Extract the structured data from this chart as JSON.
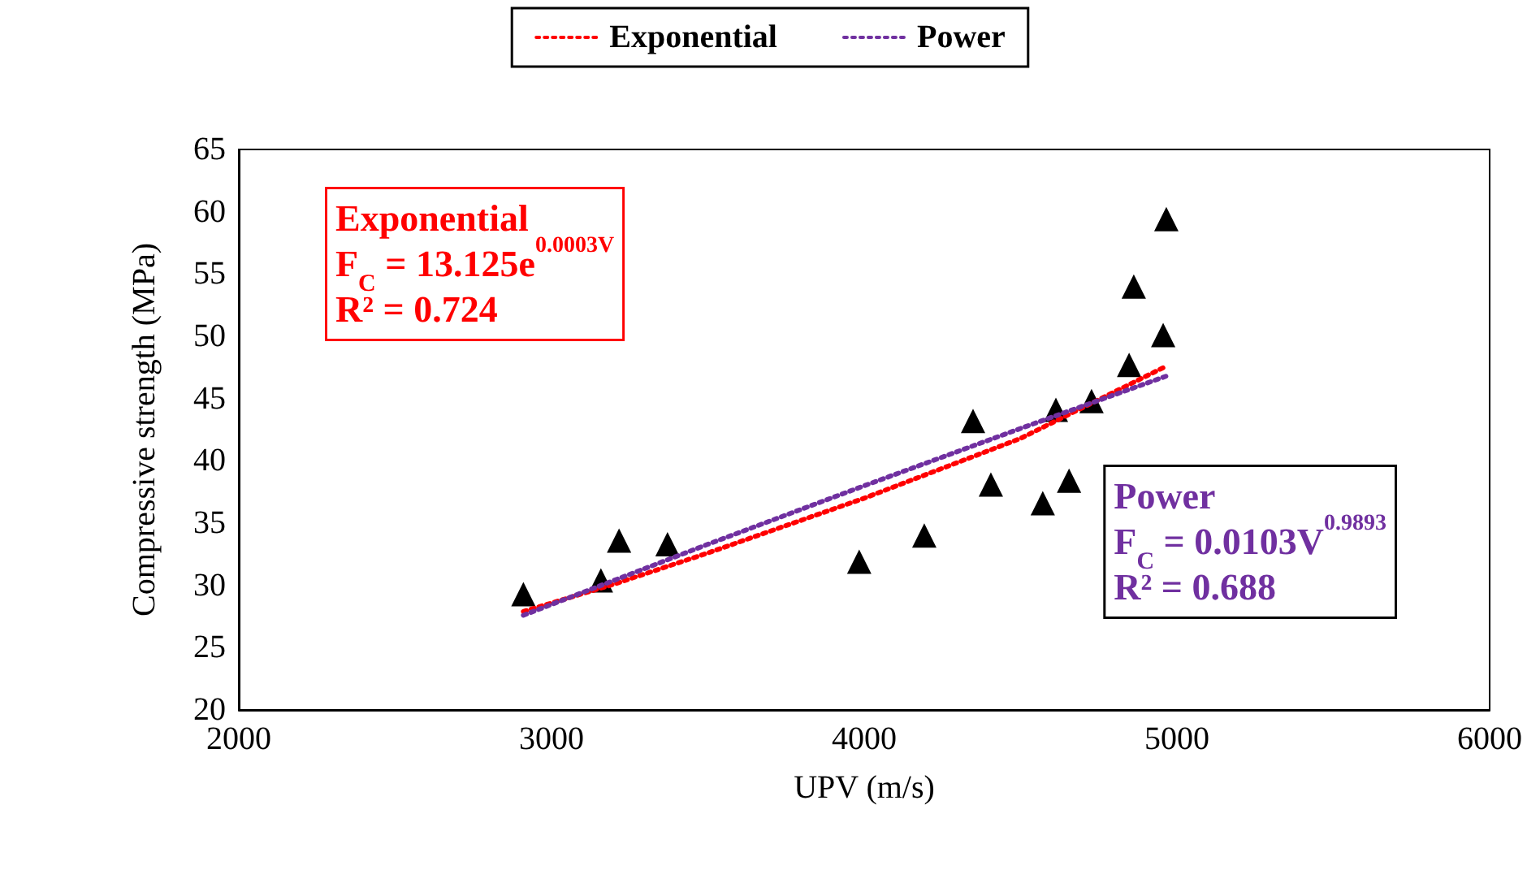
{
  "chart_data": {
    "type": "scatter",
    "xlabel": "UPV (m/s)",
    "ylabel": "Compressive strength (MPa)",
    "series": [
      {
        "color": "#000000",
        "marker": "triangle",
        "x": [
          2910,
          3158,
          3216,
          3371,
          3984,
          4192,
          4348,
          4405,
          4571,
          4613,
          4655,
          4727,
          4847,
          4862,
          4956,
          4966
        ],
        "values": [
          29.3,
          30.4,
          33.6,
          33.3,
          31.9,
          34.0,
          43.2,
          38.1,
          36.6,
          44.1,
          38.4,
          44.8,
          47.7,
          54.0,
          50.1,
          59.4
        ]
      },
      {
        "type": "line",
        "name": "Exponential",
        "color": "#ff0000",
        "marker": "none",
        "line_style": "dotted",
        "x": [
          2910,
          3200,
          3500,
          4000,
          4500,
          4966
        ],
        "values": [
          27.9,
          30.1,
          32.6,
          37.0,
          41.8,
          47.6
        ]
      },
      {
        "type": "line",
        "name": "Power",
        "color": "#7030a0",
        "marker": "none",
        "line_style": "dotted",
        "x": [
          2910,
          3200,
          3500,
          4000,
          4500,
          4966
        ],
        "values": [
          27.6,
          30.4,
          33.3,
          38.0,
          42.6,
          46.8
        ]
      }
    ],
    "annotations": [
      "Exponential\nF$_{C}$ = 13.125e$^{0.0003V}$\nR² = 0.724",
      "Power\nF$_{C}$ = 0.0103V$^{0.9893}$\nR² = 0.688"
    ],
    "xlim": [
      2000,
      6000
    ],
    "xticks": [
      2000,
      3000,
      4000,
      5000,
      6000
    ],
    "ylim": [
      20,
      65
    ],
    "yticks": [
      20,
      25,
      30,
      35,
      40,
      45,
      50,
      55,
      60,
      65
    ],
    "grid": false,
    "legend": "top"
  }
}
